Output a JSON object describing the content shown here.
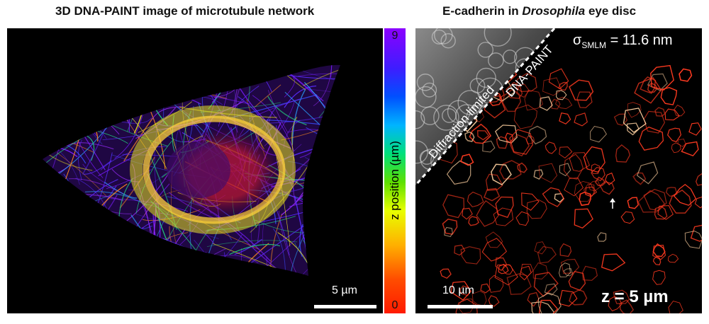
{
  "left_panel": {
    "title": "3D DNA-PAINT image of microtubule network",
    "colorbar": {
      "label": "z position (µm)",
      "max": "9",
      "min": "0"
    },
    "scale_bar": "5 µm"
  },
  "right_panel": {
    "title_prefix": "E-cadherin in ",
    "title_italic": "Drosophila",
    "title_suffix": " eye disc",
    "diffraction_label": "Diffraction limited",
    "dnapaint_label": "DNA-PAINT",
    "sigma_symbol": "σ",
    "sigma_subscript": "SMLM",
    "sigma_value": " = 11.6 nm",
    "scale_bar": "10 µm",
    "z_label": "z = 5 µm"
  },
  "colors": {
    "colormap": [
      "#8b00ff",
      "#0050ff",
      "#00b4ff",
      "#00e07a",
      "#e8ff00",
      "#ffb000",
      "#ff1a00"
    ],
    "right_signal": "#ff3a20"
  }
}
